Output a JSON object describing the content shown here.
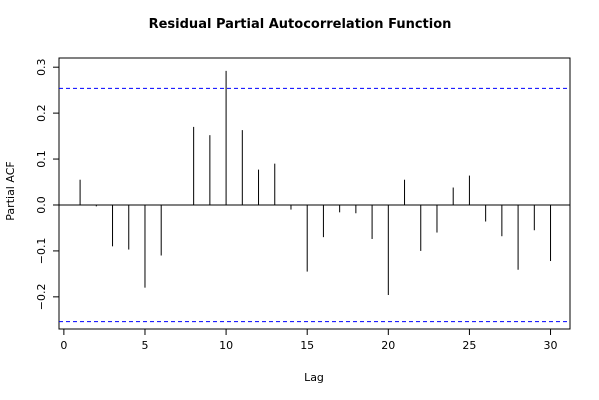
{
  "chart_data": {
    "type": "bar",
    "title": "Residual Partial Autocorrelation Function",
    "xlabel": "Lag",
    "ylabel": "Partial ACF",
    "xlim": [
      -0.3,
      31.2
    ],
    "ylim": [
      -0.27,
      0.32
    ],
    "xticks": [
      0,
      5,
      10,
      15,
      20,
      25,
      30
    ],
    "yticks": [
      -0.2,
      -0.1,
      0.0,
      0.1,
      0.2,
      0.3
    ],
    "ytick_labels": [
      "−0.2",
      "−0.1",
      "0.0",
      "0.1",
      "0.2",
      "0.3"
    ],
    "grid": false,
    "confidence_bounds": [
      0.254,
      -0.254
    ],
    "colors": {
      "spikes": "#000000",
      "bounds": "#0000ff",
      "zero_line": "#000000",
      "frame": "#000000"
    },
    "series": [
      {
        "lags": [
          1,
          2,
          3,
          4,
          5,
          6,
          7,
          8,
          9,
          10,
          11,
          12,
          13,
          14,
          15,
          16,
          17,
          18,
          19,
          20,
          21,
          22,
          23,
          24,
          25,
          26,
          27,
          28,
          29,
          30
        ],
        "values": [
          0.055,
          -0.003,
          -0.09,
          -0.097,
          -0.18,
          -0.11,
          -0.001,
          0.17,
          0.152,
          0.292,
          0.163,
          0.077,
          0.09,
          -0.01,
          -0.145,
          -0.07,
          -0.016,
          -0.018,
          -0.074,
          -0.196,
          0.055,
          -0.1,
          -0.06,
          0.038,
          0.064,
          -0.036,
          -0.068,
          -0.141,
          -0.055,
          -0.122
        ]
      }
    ]
  }
}
